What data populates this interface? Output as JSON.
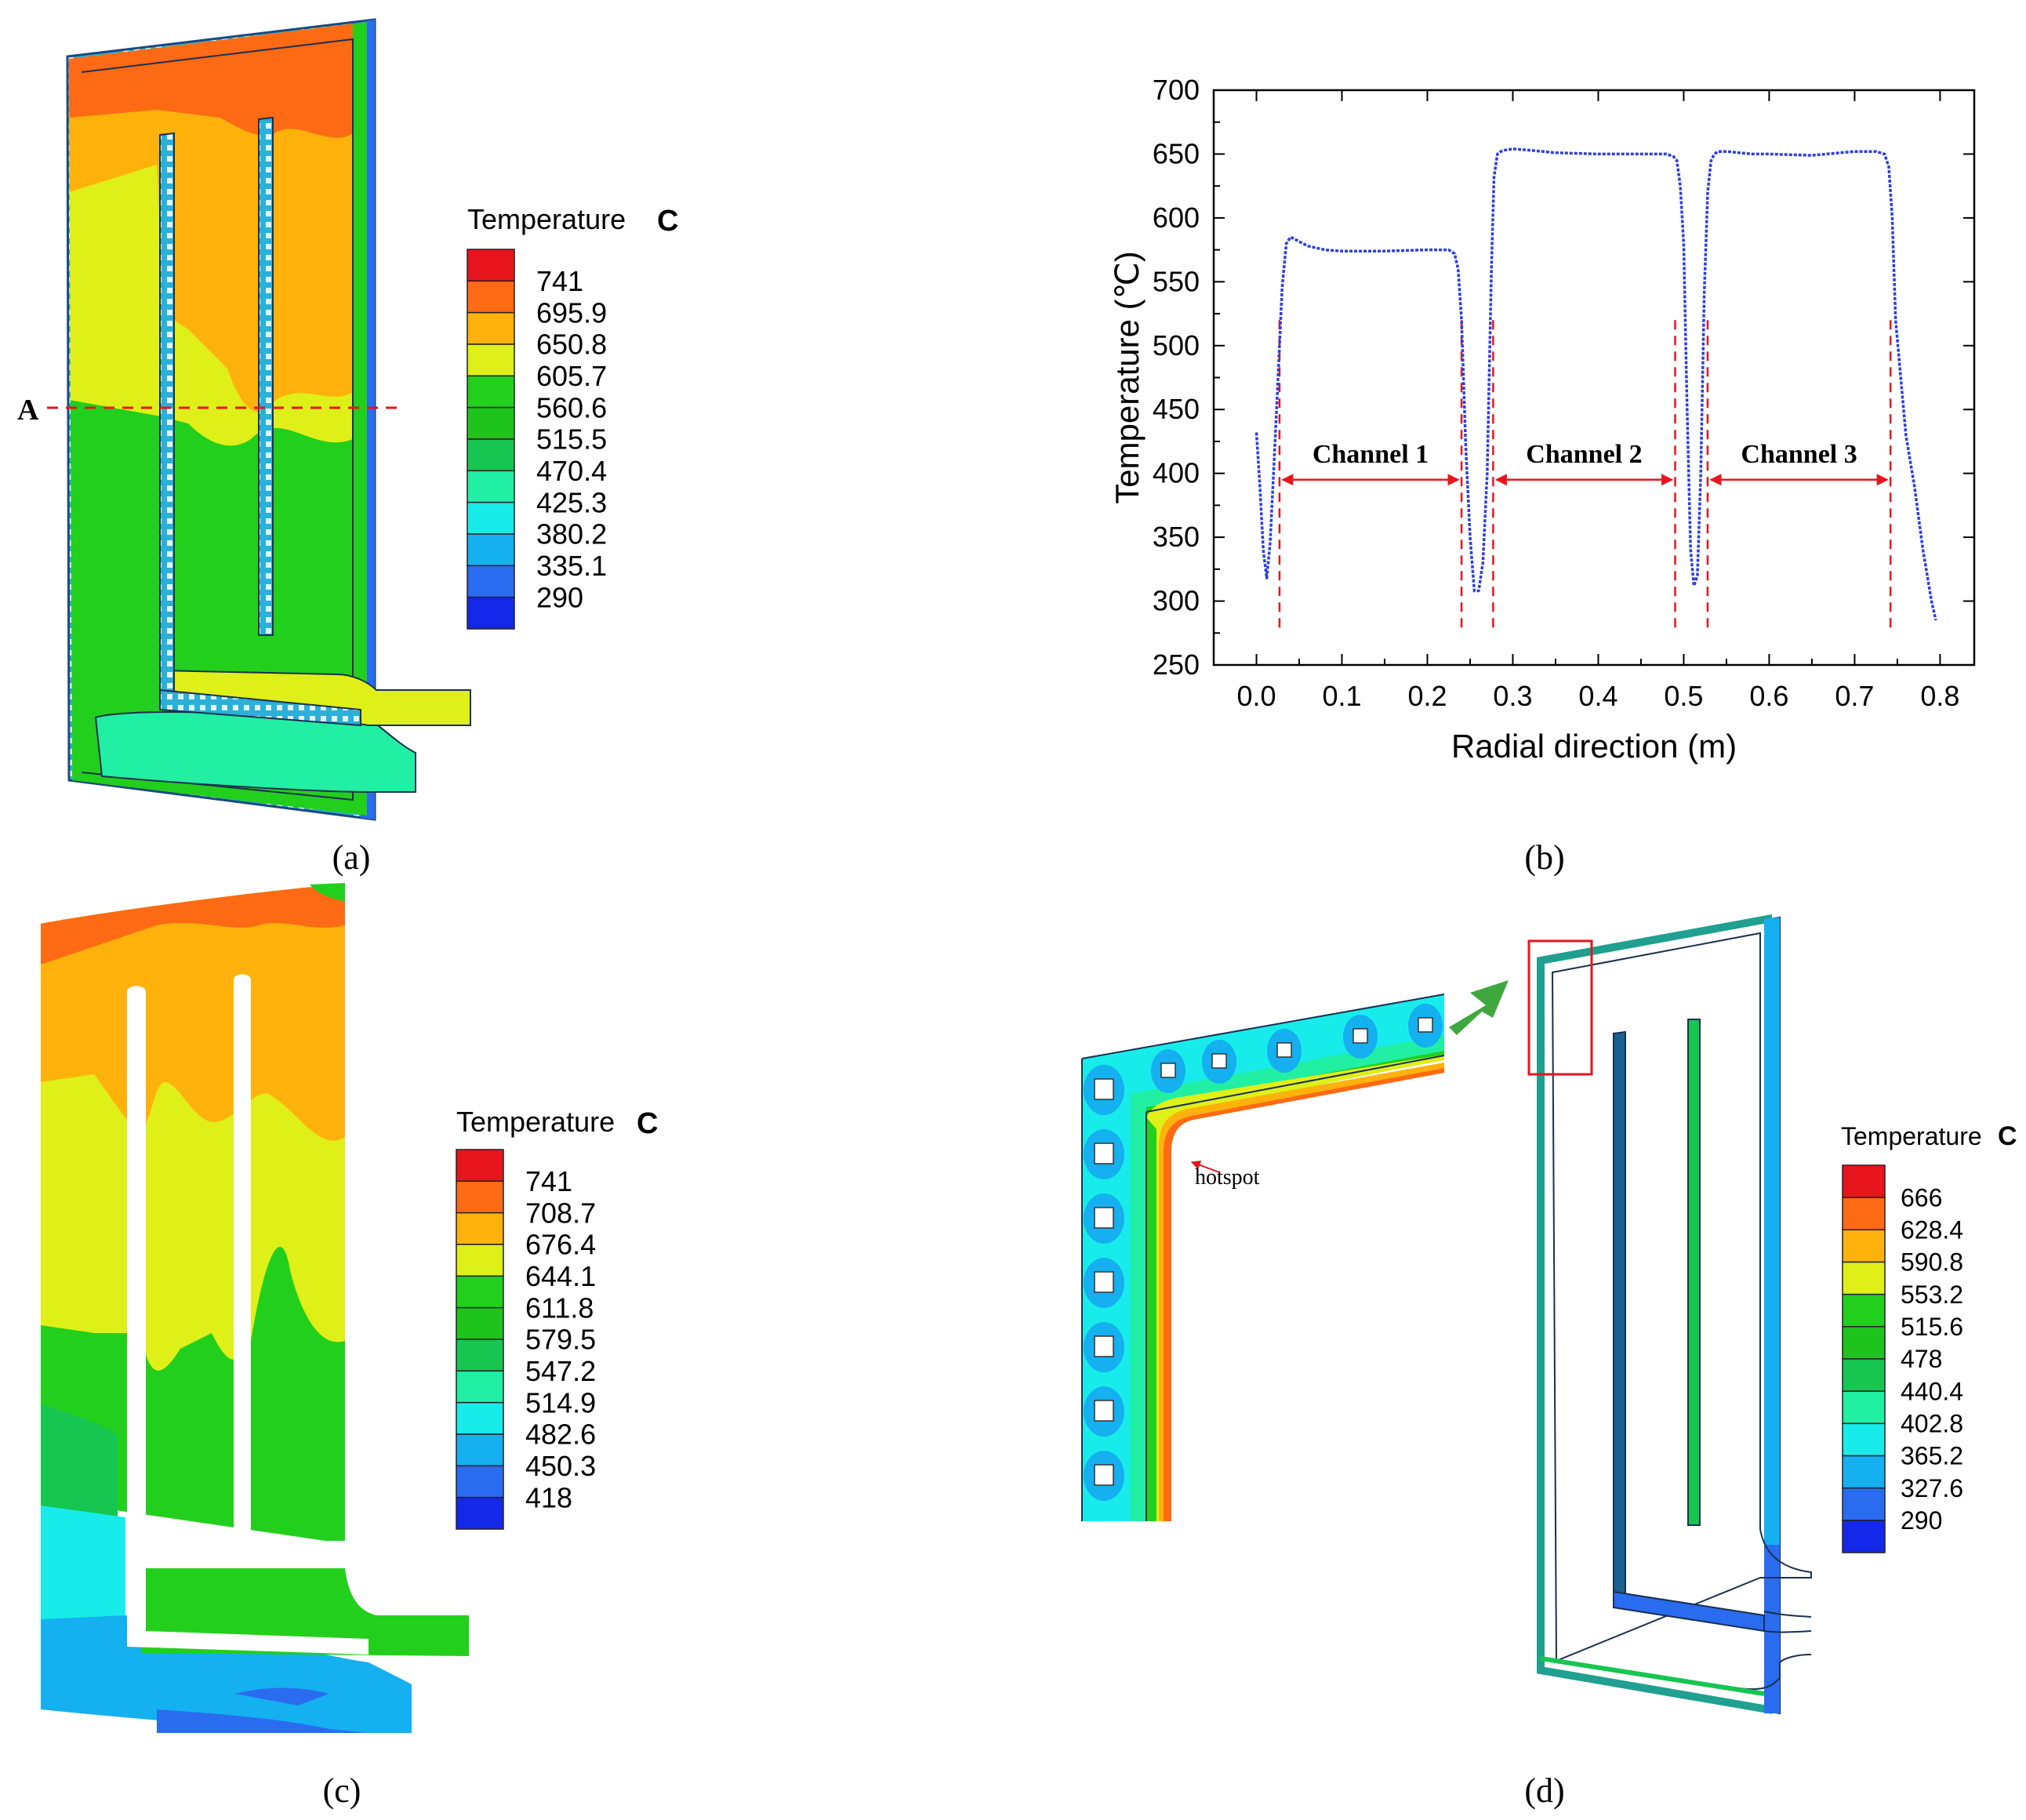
{
  "panels": {
    "a": {
      "caption": "(a)",
      "section_label": "A",
      "legend": {
        "title": "Temperature",
        "unit": "C",
        "values": [
          "741",
          "695.9",
          "650.8",
          "605.7",
          "560.6",
          "515.5",
          "470.4",
          "425.3",
          "380.2",
          "335.1",
          "290"
        ]
      }
    },
    "b": {
      "caption": "(b)"
    },
    "c": {
      "caption": "(c)",
      "legend": {
        "title": "Temperature",
        "unit": "C",
        "values": [
          "741",
          "708.7",
          "676.4",
          "644.1",
          "611.8",
          "579.5",
          "547.2",
          "514.9",
          "482.6",
          "450.3",
          "418"
        ]
      }
    },
    "d": {
      "caption": "(d)",
      "hotspot_label": "hotspot",
      "legend": {
        "title": "Temperature",
        "unit": "C",
        "values": [
          "666",
          "628.4",
          "590.8",
          "553.2",
          "515.6",
          "478",
          "440.4",
          "402.8",
          "365.2",
          "327.6",
          "290"
        ]
      }
    }
  },
  "legend_colors": [
    "#e8151c",
    "#ff6a14",
    "#ffb20c",
    "#dfef18",
    "#22cf1c",
    "#1ec41c",
    "#16c650",
    "#20efa4",
    "#18ecea",
    "#14b0f0",
    "#2a6cf0",
    "#1428ea"
  ],
  "chart_data": {
    "type": "line",
    "xlabel": "Radial direction (m)",
    "ylabel": "Temperature (℃)",
    "xlim": [
      -0.05,
      0.84
    ],
    "ylim": [
      250,
      700
    ],
    "xticks": [
      "0.0",
      "0.1",
      "0.2",
      "0.3",
      "0.4",
      "0.5",
      "0.6",
      "0.7",
      "0.8"
    ],
    "yticks": [
      "250",
      "300",
      "350",
      "400",
      "450",
      "500",
      "550",
      "600",
      "650",
      "700"
    ],
    "series": [
      {
        "color": "#2d3ee0",
        "x": [
          0.0,
          0.004,
          0.008,
          0.012,
          0.016,
          0.02,
          0.025,
          0.03,
          0.035,
          0.04,
          0.06,
          0.08,
          0.1,
          0.15,
          0.2,
          0.225,
          0.232,
          0.236,
          0.24,
          0.245,
          0.25,
          0.255,
          0.26,
          0.265,
          0.27,
          0.275,
          0.278,
          0.282,
          0.286,
          0.29,
          0.3,
          0.32,
          0.35,
          0.4,
          0.45,
          0.48,
          0.488,
          0.492,
          0.496,
          0.5,
          0.504,
          0.508,
          0.512,
          0.516,
          0.52,
          0.524,
          0.528,
          0.532,
          0.536,
          0.54,
          0.55,
          0.58,
          0.6,
          0.65,
          0.7,
          0.725,
          0.735,
          0.74,
          0.744,
          0.748,
          0.76,
          0.77,
          0.78,
          0.79,
          0.795
        ],
        "y": [
          432,
          390,
          340,
          318,
          345,
          400,
          470,
          545,
          580,
          585,
          578,
          575,
          574,
          574,
          575,
          575,
          572,
          560,
          520,
          420,
          350,
          308,
          308,
          330,
          400,
          560,
          632,
          650,
          652,
          653,
          654,
          653,
          651,
          650,
          650,
          650,
          648,
          645,
          625,
          580,
          450,
          340,
          312,
          320,
          400,
          540,
          620,
          645,
          650,
          652,
          652,
          650,
          650,
          649,
          652,
          652,
          650,
          640,
          600,
          520,
          430,
          390,
          340,
          300,
          285
        ]
      }
    ],
    "annotations": [
      {
        "text": "Channel 1",
        "from": 0.027,
        "to": 0.24,
        "y": 395
      },
      {
        "text": "Channel 2",
        "from": 0.277,
        "to": 0.49,
        "y": 395
      },
      {
        "text": "Channel 3",
        "from": 0.528,
        "to": 0.742,
        "y": 395
      }
    ],
    "reference_lines": [
      0.027,
      0.24,
      0.277,
      0.49,
      0.528,
      0.742
    ]
  }
}
